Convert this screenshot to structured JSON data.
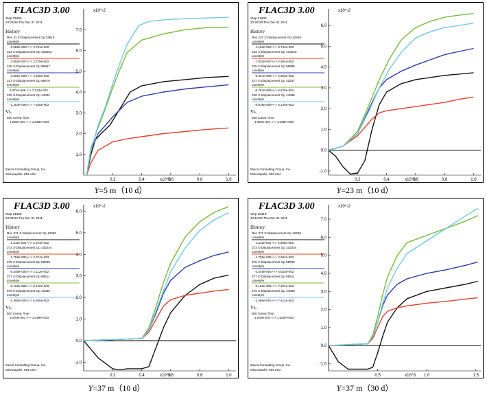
{
  "colors": {
    "black": "#111111",
    "red": "#e0402a",
    "blue": "#2b3aa5",
    "green": "#78b83a",
    "cyan": "#6fc7e6"
  },
  "chart_data": [
    {
      "type": "line",
      "header": {
        "logo": "FLAC3D 3.00",
        "step": "Step 21609",
        "datetime": "23:28:55 Thu Dec 01 2011",
        "history": "History",
        "legend": [
          {
            "color": "black",
            "title": "Rev 31 Z-Displacement Gp 12618",
            "style": "Linestyle",
            "range": "-2.986e-003 <-> 4.761e-002"
          },
          {
            "color": "red",
            "title": "313 X-Displacement Gp 103262",
            "style": "Linestyle",
            "range": "-2.092e-007 <-> 2.276e-002"
          },
          {
            "color": "blue",
            "title": "315 X-Displacement Gp 98957",
            "style": "Linestyle",
            "range": "-3.061e-009 <-> 4.368e-002"
          },
          {
            "color": "green",
            "title": "317 X-Displacement Gp 95679",
            "style": "Linestyle",
            "range": "3.471e-009 <-> 7.123e-002"
          },
          {
            "color": "cyan",
            "title": "319 X-Displacement Gp 14062",
            "style": "Linestyle",
            "range": "-1.254e-008 <-> 7.626e-002"
          }
        ],
        "vs": "Vs.",
        "vs_var": "500 Creep Time",
        "vs_range": "1.000e-001 <-> 1.039e+003",
        "footer1": "Itasca Consulting Group, Inc.",
        "footer2": "Minneapolis, MN  USA"
      },
      "xlim": [
        0,
        1.05
      ],
      "ylim": [
        0,
        8
      ],
      "x_unit": "x10^3",
      "y_unit": "x10^-2",
      "x_ticks": [
        "0.2",
        "0.4",
        "0.6",
        "0.8",
        "1.0"
      ],
      "y_ticks": [
        "1.0",
        "2.0",
        "3.0",
        "4.0",
        "5.0",
        "6.0",
        "7.0"
      ],
      "series": [
        {
          "color": "black",
          "x": [
            0.02,
            0.05,
            0.08,
            0.12,
            0.18,
            0.25,
            0.32,
            0.4,
            0.55,
            0.7,
            0.85,
            1.0
          ],
          "y": [
            0.0,
            1.0,
            1.7,
            2.0,
            2.4,
            3.2,
            4.0,
            4.3,
            4.5,
            4.6,
            4.7,
            4.75
          ]
        },
        {
          "color": "red",
          "x": [
            0.02,
            0.05,
            0.1,
            0.15,
            0.2,
            0.3,
            0.4,
            0.55,
            0.7,
            0.85,
            1.0
          ],
          "y": [
            0.0,
            0.6,
            1.2,
            1.4,
            1.6,
            1.75,
            1.85,
            2.0,
            2.1,
            2.2,
            2.27
          ]
        },
        {
          "color": "blue",
          "x": [
            0.02,
            0.05,
            0.1,
            0.15,
            0.2,
            0.3,
            0.4,
            0.55,
            0.7,
            0.85,
            1.0
          ],
          "y": [
            0.0,
            1.2,
            2.0,
            2.4,
            2.8,
            3.5,
            3.8,
            4.0,
            4.15,
            4.25,
            4.35
          ]
        },
        {
          "color": "green",
          "x": [
            0.02,
            0.05,
            0.1,
            0.15,
            0.2,
            0.25,
            0.3,
            0.4,
            0.55,
            0.7,
            0.85,
            1.0
          ],
          "y": [
            0.0,
            1.3,
            2.3,
            3.2,
            4.2,
            5.1,
            5.9,
            6.5,
            6.8,
            7.0,
            7.1,
            7.12
          ]
        },
        {
          "color": "cyan",
          "x": [
            0.02,
            0.05,
            0.1,
            0.15,
            0.2,
            0.25,
            0.3,
            0.38,
            0.45,
            0.6,
            0.8,
            1.0
          ],
          "y": [
            0.0,
            1.2,
            2.4,
            3.3,
            4.4,
            5.4,
            6.3,
            7.2,
            7.4,
            7.5,
            7.55,
            7.6
          ]
        }
      ]
    },
    {
      "type": "line",
      "header": {
        "logo": "FLAC3D 3.00",
        "step": "Step 21609",
        "datetime": "23:28:29 Thu Dec 01 2011",
        "history": "History",
        "legend": [
          {
            "color": "black",
            "title": "Rev 231 Z-Displacement Gp 12636",
            "style": "Linestyle",
            "range": "-1.183e-002 <-> 3.734e-002"
          },
          {
            "color": "red",
            "title": "233 X-Displacement Gp 103220",
            "style": "Linestyle",
            "range": "-7.830e-007 <-> 2.564e-002"
          },
          {
            "color": "blue",
            "title": "235 X-Displacement Gp 98985",
            "style": "Linestyle",
            "range": "-6.427e-009 <-> 4.903e-002"
          },
          {
            "color": "green",
            "title": "237 X-Displacement Gp 32537",
            "style": "Linestyle",
            "range": "-6.764e-009 <-> 6.578e-002"
          },
          {
            "color": "cyan",
            "title": "239 X-Displacement Gp 14086",
            "style": "Linestyle",
            "range": "-8.818e-009 <-> 6.120e-002"
          }
        ],
        "vs": "Vs.",
        "vs_var": "500 Creep Time",
        "vs_range": "1.000e-001 <-> 1.039e+003",
        "footer1": "Itasca Consulting Group, Inc.",
        "footer2": "Minneapolis, MN  USA"
      },
      "xlim": [
        0,
        1.05
      ],
      "ylim": [
        -1.2,
        6.8
      ],
      "x_unit": "x10^3",
      "y_unit": "x10^-2",
      "x_ticks": [
        "0.2",
        "0.4",
        "0.6",
        "0.8",
        "1.0"
      ],
      "y_ticks": [
        "-1.0",
        "0.0",
        "1.0",
        "2.0",
        "3.0",
        "4.0",
        "5.0",
        "6.0"
      ],
      "series": [
        {
          "color": "black",
          "x": [
            0.0,
            0.05,
            0.1,
            0.15,
            0.2,
            0.25,
            0.3,
            0.35,
            0.4,
            0.5,
            0.6,
            0.8,
            1.0
          ],
          "y": [
            0.0,
            -0.3,
            -0.8,
            -1.15,
            -1.1,
            -0.5,
            1.0,
            2.2,
            2.8,
            3.2,
            3.4,
            3.6,
            3.73
          ]
        },
        {
          "color": "red",
          "x": [
            0.0,
            0.1,
            0.2,
            0.3,
            0.35,
            0.4,
            0.5,
            0.6,
            0.7,
            0.8,
            0.9,
            1.0
          ],
          "y": [
            0.0,
            0.2,
            0.7,
            1.5,
            1.8,
            1.9,
            2.0,
            2.1,
            2.2,
            2.3,
            2.45,
            2.56
          ]
        },
        {
          "color": "blue",
          "x": [
            0.0,
            0.1,
            0.2,
            0.28,
            0.35,
            0.4,
            0.5,
            0.6,
            0.7,
            0.8,
            0.9,
            1.0
          ],
          "y": [
            0.0,
            0.2,
            0.8,
            2.0,
            3.0,
            3.4,
            3.8,
            4.1,
            4.35,
            4.6,
            4.75,
            4.9
          ]
        },
        {
          "color": "green",
          "x": [
            0.0,
            0.1,
            0.2,
            0.28,
            0.35,
            0.42,
            0.5,
            0.6,
            0.7,
            0.8,
            0.9,
            1.0
          ],
          "y": [
            0.0,
            0.2,
            0.9,
            2.2,
            3.4,
            4.4,
            5.3,
            5.9,
            6.2,
            6.4,
            6.5,
            6.58
          ]
        },
        {
          "color": "cyan",
          "x": [
            0.0,
            0.1,
            0.2,
            0.28,
            0.35,
            0.42,
            0.5,
            0.6,
            0.7,
            0.8,
            0.9,
            1.0
          ],
          "y": [
            0.0,
            0.2,
            0.8,
            1.9,
            3.0,
            3.9,
            4.7,
            5.4,
            5.7,
            5.9,
            6.0,
            6.12
          ]
        }
      ]
    },
    {
      "type": "line",
      "header": {
        "logo": "FLAC3D 3.00",
        "step": "Step 21609",
        "datetime": "23:33:52 Thu Dec 01 2011",
        "history": "History",
        "legend": [
          {
            "color": "black",
            "title": "Rev 371 Z-Displacement Gp 12650",
            "style": "Linestyle",
            "range": "-1.311e-002 <-> 3.041e-002"
          },
          {
            "color": "red",
            "title": "373 X-Displacement Gp 103244",
            "style": "Linestyle",
            "range": "-1.758e-005 <-> 2.374e-002"
          },
          {
            "color": "blue",
            "title": "375 X-Displacement Gp 99009",
            "style": "Linestyle",
            "range": "-5.345e-005 <-> 4.112e-002"
          },
          {
            "color": "green",
            "title": "377 X-Displacement Gp 95611",
            "style": "Linestyle",
            "range": "-9.162e-005 <-> 6.210e-002"
          },
          {
            "color": "cyan",
            "title": "379 X-Displacement Gp 14085",
            "style": "Linestyle",
            "range": "-1.365e-004 <-> 5.930e-002"
          }
        ],
        "vs": "Vs.",
        "vs_var": "500 Creep Time",
        "vs_range": "1.000e-001 <-> 1.039e+003",
        "footer1": "Itasca Consulting Group, Inc.",
        "footer2": "Minneapolis, MN  USA"
      },
      "xlim": [
        0,
        1.05
      ],
      "ylim": [
        -1.4,
        6.3
      ],
      "x_unit": "x10^3",
      "y_unit": "x10^-2",
      "x_ticks": [
        "0.2",
        "0.4",
        "0.6",
        "0.8",
        "1.0"
      ],
      "y_ticks": [
        "-1.0",
        "0.0",
        "1.0",
        "2.0",
        "3.0",
        "4.0",
        "5.0",
        "6.0"
      ],
      "series": [
        {
          "color": "black",
          "x": [
            0.0,
            0.1,
            0.2,
            0.25,
            0.3,
            0.4,
            0.45,
            0.5,
            0.55,
            0.6,
            0.7,
            0.8,
            0.9,
            1.0
          ],
          "y": [
            0.0,
            -0.8,
            -1.3,
            -1.35,
            -1.3,
            -1.3,
            -1.2,
            -0.3,
            0.6,
            1.3,
            2.1,
            2.6,
            2.9,
            3.04
          ]
        },
        {
          "color": "red",
          "x": [
            0.0,
            0.4,
            0.45,
            0.5,
            0.55,
            0.6,
            0.7,
            0.8,
            0.9,
            1.0
          ],
          "y": [
            0.0,
            0.1,
            0.4,
            1.0,
            1.6,
            1.9,
            2.1,
            2.2,
            2.3,
            2.37
          ]
        },
        {
          "color": "blue",
          "x": [
            0.0,
            0.4,
            0.45,
            0.5,
            0.55,
            0.6,
            0.7,
            0.8,
            0.9,
            1.0
          ],
          "y": [
            0.0,
            0.1,
            0.5,
            1.3,
            2.2,
            2.8,
            3.4,
            3.7,
            3.95,
            4.11
          ]
        },
        {
          "color": "green",
          "x": [
            0.0,
            0.4,
            0.45,
            0.5,
            0.55,
            0.6,
            0.7,
            0.8,
            0.9,
            1.0
          ],
          "y": [
            0.0,
            0.1,
            0.6,
            1.6,
            2.7,
            3.6,
            4.8,
            5.5,
            5.95,
            6.21
          ]
        },
        {
          "color": "cyan",
          "x": [
            0.0,
            0.4,
            0.45,
            0.5,
            0.55,
            0.6,
            0.7,
            0.8,
            0.9,
            1.0
          ],
          "y": [
            0.0,
            0.1,
            0.5,
            1.4,
            2.3,
            3.2,
            4.3,
            5.1,
            5.6,
            5.93
          ]
        }
      ]
    },
    {
      "type": "line",
      "header": {
        "logo": "FLAC3D 3.00",
        "step": "Step 26416",
        "datetime": "23:18:02 Thu Dec 01 2011",
        "history": "History",
        "legend": [
          {
            "color": "black",
            "title": "Rev 371 Z-Displacement Gp 12650",
            "style": "Linestyle",
            "range": "-1.311e-002 <-> 3.565e-002"
          },
          {
            "color": "red",
            "title": "373 X-Displacement Gp 103244",
            "style": "Linestyle",
            "range": "-1.758e-005 <-> 2.652e-002"
          },
          {
            "color": "blue",
            "title": "375 X-Displacement Gp 99009",
            "style": "Linestyle",
            "range": "-5.345e-005 <-> 4.633e-002"
          },
          {
            "color": "green",
            "title": "377 X-Displacement Gp 95611",
            "style": "Linestyle",
            "range": "-9.162e-005 <-> 7.201e-002"
          },
          {
            "color": "cyan",
            "title": "379 X-Displacement Gp 14085",
            "style": "Linestyle",
            "range": "-1.365e-004 <-> 7.612e-002"
          }
        ],
        "vs": "Vs.",
        "vs_var": "500 Creep Time",
        "vs_range": "1.000e-001 <-> 1.520e+003",
        "footer1": "Itasca Consulting Group, Inc.",
        "footer2": "Minneapolis, MN  USA"
      },
      "xlim": [
        0,
        1.55
      ],
      "ylim": [
        -1.4,
        7.8
      ],
      "x_unit": "x10^3",
      "y_unit": "x10^-2",
      "x_ticks": [
        "0.5",
        "1.0",
        "1.5"
      ],
      "y_ticks": [
        "-1.0",
        "0.0",
        "1.0",
        "2.0",
        "3.0",
        "4.0",
        "5.0",
        "6.0",
        "7.0"
      ],
      "series": [
        {
          "color": "black",
          "x": [
            0.0,
            0.1,
            0.2,
            0.3,
            0.4,
            0.45,
            0.5,
            0.55,
            0.6,
            0.7,
            0.8,
            1.0,
            1.2,
            1.4,
            1.52
          ],
          "y": [
            0.0,
            -0.9,
            -1.3,
            -1.3,
            -1.3,
            -1.2,
            -0.4,
            0.5,
            1.3,
            2.1,
            2.6,
            3.0,
            3.2,
            3.4,
            3.56
          ]
        },
        {
          "color": "red",
          "x": [
            0.0,
            0.4,
            0.45,
            0.5,
            0.55,
            0.6,
            0.7,
            0.8,
            1.0,
            1.2,
            1.4,
            1.52
          ],
          "y": [
            0.0,
            0.1,
            0.4,
            1.0,
            1.6,
            1.9,
            2.1,
            2.2,
            2.35,
            2.45,
            2.58,
            2.65
          ]
        },
        {
          "color": "blue",
          "x": [
            0.0,
            0.4,
            0.45,
            0.5,
            0.55,
            0.6,
            0.7,
            0.8,
            1.0,
            1.2,
            1.4,
            1.52
          ],
          "y": [
            0.0,
            0.1,
            0.5,
            1.3,
            2.2,
            2.8,
            3.4,
            3.7,
            4.0,
            4.2,
            4.45,
            4.63
          ]
        },
        {
          "color": "green",
          "x": [
            0.0,
            0.4,
            0.45,
            0.5,
            0.55,
            0.6,
            0.7,
            0.8,
            1.0,
            1.2,
            1.4,
            1.52
          ],
          "y": [
            0.0,
            0.1,
            0.6,
            1.6,
            2.8,
            3.8,
            5.0,
            5.7,
            6.1,
            6.5,
            6.9,
            7.2
          ]
        },
        {
          "color": "cyan",
          "x": [
            0.0,
            0.4,
            0.45,
            0.5,
            0.55,
            0.6,
            0.7,
            0.8,
            1.0,
            1.2,
            1.4,
            1.52
          ],
          "y": [
            0.0,
            0.1,
            0.5,
            1.3,
            2.3,
            3.2,
            4.3,
            5.1,
            5.8,
            6.5,
            7.2,
            7.6
          ]
        }
      ]
    }
  ],
  "captions": [
    {
      "var": "Y",
      "text": "=5 m（10 d）"
    },
    {
      "var": "Y",
      "text": "=23 m（10 d）"
    },
    {
      "var": "Y",
      "text": "=37 m（10 d）"
    },
    {
      "var": "Y",
      "text": "=37 m（30 d）"
    }
  ]
}
